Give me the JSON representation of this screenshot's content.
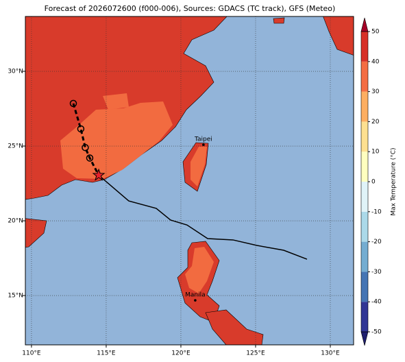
{
  "chart_data": {
    "type": "map",
    "title": "Forecast of 2026072600 (f000-006), Sources: GDACS (TC track), GFS (Meteo)",
    "xlim": [
      109.59,
      131.56
    ],
    "ylim": [
      11.7,
      33.67
    ],
    "xticks": [
      {
        "value": 110,
        "label": "110°E"
      },
      {
        "value": 115,
        "label": "115°E"
      },
      {
        "value": 120,
        "label": "120°E"
      },
      {
        "value": 125,
        "label": "125°E"
      },
      {
        "value": 130,
        "label": "130°E"
      }
    ],
    "yticks": [
      {
        "value": 15,
        "label": "15°N"
      },
      {
        "value": 20,
        "label": "20°N"
      },
      {
        "value": 25,
        "label": "25°N"
      },
      {
        "value": 30,
        "label": "30°N"
      }
    ],
    "grid": true,
    "past_track": {
      "lon": [
        112.8,
        113.3,
        113.6,
        113.9,
        114.5
      ],
      "lat": [
        27.85,
        26.15,
        24.9,
        24.2,
        23.05
      ]
    },
    "forecast_track": {
      "lon": [
        114.5,
        116.51,
        118.35,
        119.31,
        120.41,
        121.79,
        123.49,
        125.09,
        126.88,
        128.44
      ],
      "lat": [
        23.05,
        21.33,
        20.83,
        20.05,
        19.72,
        18.81,
        18.72,
        18.35,
        18.03,
        17.43
      ]
    },
    "cities": [
      {
        "name": "Taipei",
        "lon": 121.51,
        "lat": 25.09
      },
      {
        "name": "Manila",
        "lon": 120.96,
        "lat": 14.68
      }
    ],
    "colorbar": {
      "label": "Max Temperature (°C)",
      "lim": [
        -50,
        50
      ],
      "ticks": [
        -50,
        -40,
        -30,
        -20,
        -10,
        0,
        10,
        20,
        30,
        40,
        50
      ],
      "colors": [
        "#313695",
        "#4575b4",
        "#74add1",
        "#abd9e9",
        "#e0f3f8",
        "#ffffbf",
        "#fee090",
        "#fdae61",
        "#f46d43",
        "#d73027"
      ],
      "extend_colors": [
        "#1f1f6e",
        "#a50026"
      ]
    }
  }
}
